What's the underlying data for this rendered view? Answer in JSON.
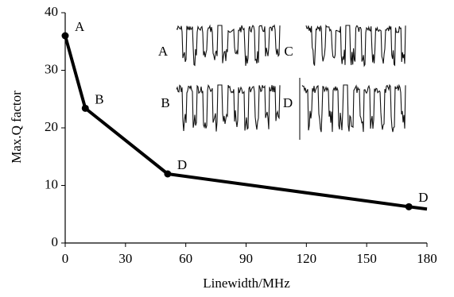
{
  "chart_data": {
    "type": "line",
    "x_label": "Linewidth/MHz",
    "y_label": "Max.Q factor",
    "x": [
      0,
      10,
      51,
      171,
      180
    ],
    "series": [
      {
        "color": "#000000",
        "values": [
          36,
          23.4,
          12,
          6.3,
          5.9
        ],
        "point_labels": [
          "A",
          "B",
          "D",
          "D",
          null
        ]
      }
    ],
    "xlim": [
      0,
      180
    ],
    "xticks": [
      0,
      30,
      60,
      90,
      120,
      150,
      180
    ],
    "ylim": [
      0,
      40
    ],
    "yticks": [
      0,
      10,
      20,
      30,
      40
    ],
    "inset_labels": [
      "A",
      "C",
      "B",
      "D"
    ]
  }
}
